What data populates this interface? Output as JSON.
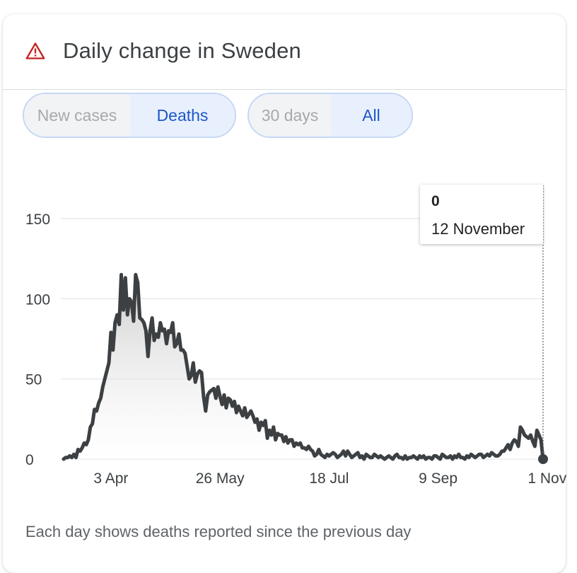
{
  "header": {
    "title": "Daily change in Sweden",
    "icon": "warning-icon",
    "icon_color": "#c5221f"
  },
  "toggles": {
    "metric": {
      "options": [
        "New cases",
        "Deaths"
      ],
      "selected": "Deaths"
    },
    "range": {
      "options": [
        "30 days",
        "All"
      ],
      "selected": "All"
    }
  },
  "tooltip": {
    "value": "0",
    "date": "12 November"
  },
  "footer": {
    "note": "Each day shows deaths reported since the previous day"
  },
  "colors": {
    "line": "#3c4043",
    "accent": "#1a57c8",
    "gridline": "#e8eaed"
  },
  "chart_data": {
    "type": "area",
    "title": "",
    "xlabel": "",
    "ylabel": "",
    "ylim": [
      0,
      150
    ],
    "yticks": [
      0,
      50,
      100,
      150
    ],
    "xticks": [
      "3 Apr",
      "26 May",
      "18 Jul",
      "9 Sep",
      "1 Nov"
    ],
    "grid": true,
    "series": [
      {
        "start_date": "2020-03-11",
        "values": [
          0,
          1,
          1,
          2,
          1,
          3,
          1,
          6,
          5,
          7,
          10,
          9,
          12,
          20,
          22,
          31,
          30,
          35,
          38,
          45,
          50,
          55,
          60,
          79,
          68,
          85,
          90,
          84,
          115,
          93,
          113,
          90,
          100,
          98,
          86,
          115,
          110,
          88,
          87,
          85,
          80,
          64,
          80,
          88,
          74,
          78,
          76,
          85,
          80,
          81,
          72,
          80,
          79,
          85,
          70,
          72,
          78,
          68,
          68,
          66,
          58,
          50,
          52,
          60,
          48,
          53,
          55,
          54,
          39,
          30,
          40,
          42,
          43,
          44,
          38,
          45,
          39,
          34,
          40,
          32,
          38,
          37,
          33,
          36,
          29,
          33,
          30,
          27,
          32,
          26,
          28,
          30,
          27,
          23,
          25,
          18,
          23,
          21,
          24,
          13,
          18,
          15,
          20,
          12,
          16,
          15,
          15,
          11,
          14,
          10,
          12,
          12,
          8,
          10,
          9,
          10,
          7,
          7,
          6,
          8,
          6,
          5,
          2,
          3,
          6,
          3,
          2,
          1,
          3,
          2,
          3,
          4,
          3,
          1,
          2,
          3,
          5,
          2,
          5,
          3,
          1,
          2,
          3,
          4,
          1,
          2,
          0,
          3,
          2,
          1,
          1,
          3,
          2,
          1,
          2,
          1,
          0,
          1,
          2,
          1,
          0,
          2,
          3,
          1,
          1,
          0,
          2,
          0,
          1,
          1,
          2,
          1,
          0,
          2,
          1,
          2,
          0,
          1,
          1,
          0,
          2,
          2,
          1,
          0,
          3,
          2,
          1,
          1,
          2,
          0,
          2,
          1,
          3,
          1,
          1,
          0,
          2,
          1,
          3,
          2,
          1,
          2,
          3,
          3,
          1,
          2,
          3,
          2,
          4,
          3,
          2,
          2,
          3,
          5,
          5,
          7,
          9,
          6,
          10,
          12,
          11,
          8,
          20,
          18,
          15,
          14,
          13,
          15,
          11,
          8,
          18,
          15,
          12,
          0
        ]
      }
    ]
  }
}
